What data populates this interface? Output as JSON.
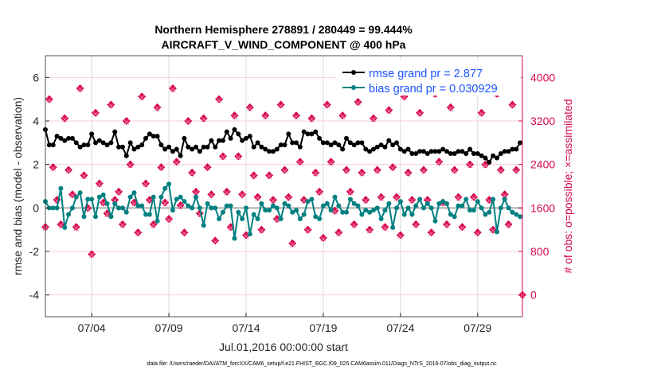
{
  "chart_data": {
    "type": "line",
    "title": [
      "Northern Hemisphere 278891 / 280449 = 99.444%",
      "AIRCRAFT_V_WIND_COMPONENT @ 400 hPa"
    ],
    "xlabel": "Jul.01,2016 00:00:00 start",
    "ylabel": "rmse and bias (model - observation)",
    "ylabel_right": "# of obs: o=possible; ×=assimilated",
    "footnote": "data file: /Users/raeder/DAI/ATM_forcXX/CAM6_setup/f.e21.FHIST_BGC.f09_025.CAM6assim.011/Diags_NTrS_2016-07/obs_diag_output.nc",
    "xlim": [
      0,
      30.9
    ],
    "ylim": [
      -5,
      7
    ],
    "ylim_right": [
      -400,
      4400
    ],
    "x_ticks": [
      {
        "value": 3,
        "label": "07/04"
      },
      {
        "value": 8,
        "label": "07/09"
      },
      {
        "value": 13,
        "label": "07/14"
      },
      {
        "value": 18,
        "label": "07/19"
      },
      {
        "value": 23,
        "label": "07/24"
      },
      {
        "value": 28,
        "label": "07/29"
      }
    ],
    "y_ticks": [
      {
        "value": 6,
        "label": "6"
      },
      {
        "value": 4,
        "label": "4"
      },
      {
        "value": 2,
        "label": "2"
      },
      {
        "value": 0,
        "label": "0"
      },
      {
        "value": -2,
        "label": "-2"
      },
      {
        "value": -4,
        "label": "-4"
      }
    ],
    "y_ticks_right": [
      {
        "value": 4000,
        "label": "4000"
      },
      {
        "value": 3200,
        "label": "3200"
      },
      {
        "value": 2400,
        "label": "2400"
      },
      {
        "value": 1600,
        "label": "1600"
      },
      {
        "value": 800,
        "label": "800"
      },
      {
        "value": 0,
        "label": "0"
      }
    ],
    "x_step_days": 0.25,
    "legend": {
      "placement": "top-right"
    },
    "series": [
      {
        "name": "rmse grand pr = 2.877",
        "color": "#000000",
        "values": [
          3.6,
          2.9,
          2.9,
          3.3,
          3.2,
          3.1,
          3.2,
          3.2,
          3.0,
          2.8,
          2.9,
          2.9,
          3.4,
          3.0,
          3.1,
          3.0,
          2.9,
          3.0,
          3.5,
          2.8,
          2.8,
          2.4,
          3.0,
          2.7,
          2.8,
          2.9,
          3.2,
          3.4,
          3.3,
          3.3,
          2.9,
          2.7,
          2.8,
          2.6,
          2.7,
          2.4,
          3.2,
          2.8,
          2.7,
          2.8,
          2.6,
          2.8,
          2.8,
          3.1,
          2.8,
          3.1,
          3.1,
          3.5,
          3.2,
          3.6,
          3.4,
          3.1,
          3.2,
          3.3,
          2.8,
          3.0,
          2.8,
          2.7,
          2.6,
          2.6,
          2.7,
          2.9,
          2.9,
          3.4,
          3.0,
          3.0,
          2.8,
          3.5,
          3.4,
          3.4,
          3.5,
          3.2,
          3.0,
          3.0,
          2.9,
          3.0,
          2.9,
          2.7,
          3.2,
          3.0,
          2.9,
          3.0,
          3.0,
          2.7,
          2.6,
          2.7,
          2.8,
          2.9,
          2.8,
          3.1,
          2.9,
          3.0,
          2.7,
          2.6,
          2.7,
          2.5,
          2.5,
          2.6,
          2.6,
          2.5,
          2.6,
          2.6,
          2.6,
          2.7,
          2.6,
          2.5,
          2.5,
          2.6,
          2.6,
          2.5,
          2.7,
          2.5,
          2.5,
          2.4,
          2.3,
          2.1,
          2.4,
          2.3,
          2.5,
          2.6,
          2.6,
          2.7,
          2.7,
          3.0
        ]
      },
      {
        "name": "bias grand pr = 0.030929",
        "color": "#008080",
        "values": [
          0.3,
          0.0,
          0.0,
          0.0,
          0.9,
          -0.9,
          -0.3,
          0.0,
          0.5,
          0.7,
          -0.4,
          0.4,
          0.4,
          -0.4,
          0.5,
          0.6,
          0.2,
          -0.4,
          0.2,
          0.0,
          0.0,
          -0.2,
          0.5,
          0.7,
          0.1,
          0.1,
          -0.3,
          -0.3,
          0.5,
          -0.6,
          0.5,
          0.9,
          1.1,
          -0.1,
          0.4,
          0.5,
          0.3,
          0.1,
          0.0,
          0.5,
          0.0,
          -0.8,
          0.2,
          0.0,
          0.0,
          -0.5,
          -0.2,
          0.1,
          0.1,
          -1.4,
          -0.2,
          -0.5,
          0.0,
          -1.2,
          -0.3,
          -0.5,
          0.2,
          -0.1,
          -0.1,
          0.1,
          0.0,
          -0.5,
          0.2,
          0.1,
          -0.2,
          -0.1,
          -0.5,
          -0.3,
          0.3,
          0.4,
          -0.4,
          -0.5,
          0.1,
          0.2,
          -0.1,
          0.5,
          0.1,
          -0.2,
          -0.2,
          0.4,
          0.2,
          0.1,
          -0.3,
          -0.1,
          -0.2,
          -0.1,
          0.0,
          -0.5,
          -0.1,
          0.2,
          -0.9,
          0.0,
          0.3,
          -0.3,
          0.0,
          -0.3,
          0.1,
          0.4,
          0.0,
          0.2,
          0.0,
          -0.6,
          0.2,
          0.3,
          0.2,
          -0.3,
          -0.4,
          0.1,
          0.1,
          0.4,
          -0.1,
          -0.1,
          0.3,
          0.0,
          -0.3,
          -0.2,
          0.4,
          -1.1,
          0.0,
          0.4,
          0.0,
          -0.2,
          -0.3,
          -0.4
        ]
      }
    ],
    "obs_color": "#d6084f",
    "obs_possible": [
      1250,
      3600,
      2350,
      1750,
      1300,
      3250,
      2300,
      1850,
      1250,
      3800,
      2200,
      1600,
      750,
      3350,
      2050,
      1700,
      1500,
      3500,
      1750,
      1900,
      1300,
      3200,
      2400,
      1700,
      1150,
      3650,
      2050,
      1750,
      1300,
      3450,
      2350,
      1700,
      1400,
      3800,
      2450,
      1650,
      1150,
      3200,
      2250,
      1900,
      1500,
      3250,
      2350,
      1850,
      1000,
      3600,
      2550,
      1900,
      1250,
      3300,
      2550,
      1850,
      1100,
      3450,
      2200,
      1800,
      1200,
      3300,
      2200,
      1750,
      1400,
      3500,
      2300,
      1800,
      950,
      3300,
      2450,
      1750,
      1200,
      3250,
      2250,
      1900,
      1050,
      3500,
      2450,
      1550,
      1150,
      3300,
      2300,
      1900,
      1300,
      3550,
      2250,
      1750,
      1200,
      3250,
      2300,
      1800,
      1250,
      3400,
      2350,
      1800,
      1100,
      3650,
      2250,
      1750,
      1300,
      3350,
      2300,
      1750,
      1150,
      3700,
      2450,
      1700,
      1300,
      3450,
      2300,
      1800,
      1250,
      3800,
      2400,
      1800,
      1150,
      3350,
      2400,
      1750,
      1200,
      3700,
      2300,
      1850,
      1300,
      3500,
      2300,
      0
    ],
    "obs_assimilated": [
      1230,
      3580,
      2330,
      1730,
      1280,
      3230,
      2280,
      1830,
      1230,
      3780,
      2180,
      1580,
      730,
      3330,
      2030,
      1680,
      1480,
      3480,
      1730,
      1880,
      1280,
      3180,
      2380,
      1680,
      1130,
      3630,
      2030,
      1730,
      1280,
      3430,
      2330,
      1680,
      1380,
      3780,
      2430,
      1630,
      1130,
      3180,
      2230,
      1880,
      1480,
      3230,
      2330,
      1830,
      980,
      3580,
      2530,
      1880,
      1230,
      3280,
      2530,
      1830,
      1080,
      3430,
      2180,
      1780,
      1180,
      3280,
      2180,
      1730,
      1380,
      3480,
      2280,
      1780,
      930,
      3280,
      2430,
      1730,
      1180,
      3230,
      2230,
      1880,
      1030,
      3480,
      2430,
      1530,
      1130,
      3280,
      2280,
      1880,
      1280,
      3530,
      2230,
      1730,
      1180,
      3230,
      2280,
      1780,
      1230,
      3380,
      2330,
      1780,
      1080,
      3630,
      2230,
      1730,
      1280,
      3330,
      2280,
      1730,
      1130,
      3680,
      2430,
      1680,
      1280,
      3430,
      2280,
      1780,
      1230,
      3780,
      2380,
      1780,
      1130,
      3330,
      2380,
      1730,
      1180,
      3680,
      2280,
      1830,
      1280,
      3480,
      2280,
      0
    ]
  }
}
